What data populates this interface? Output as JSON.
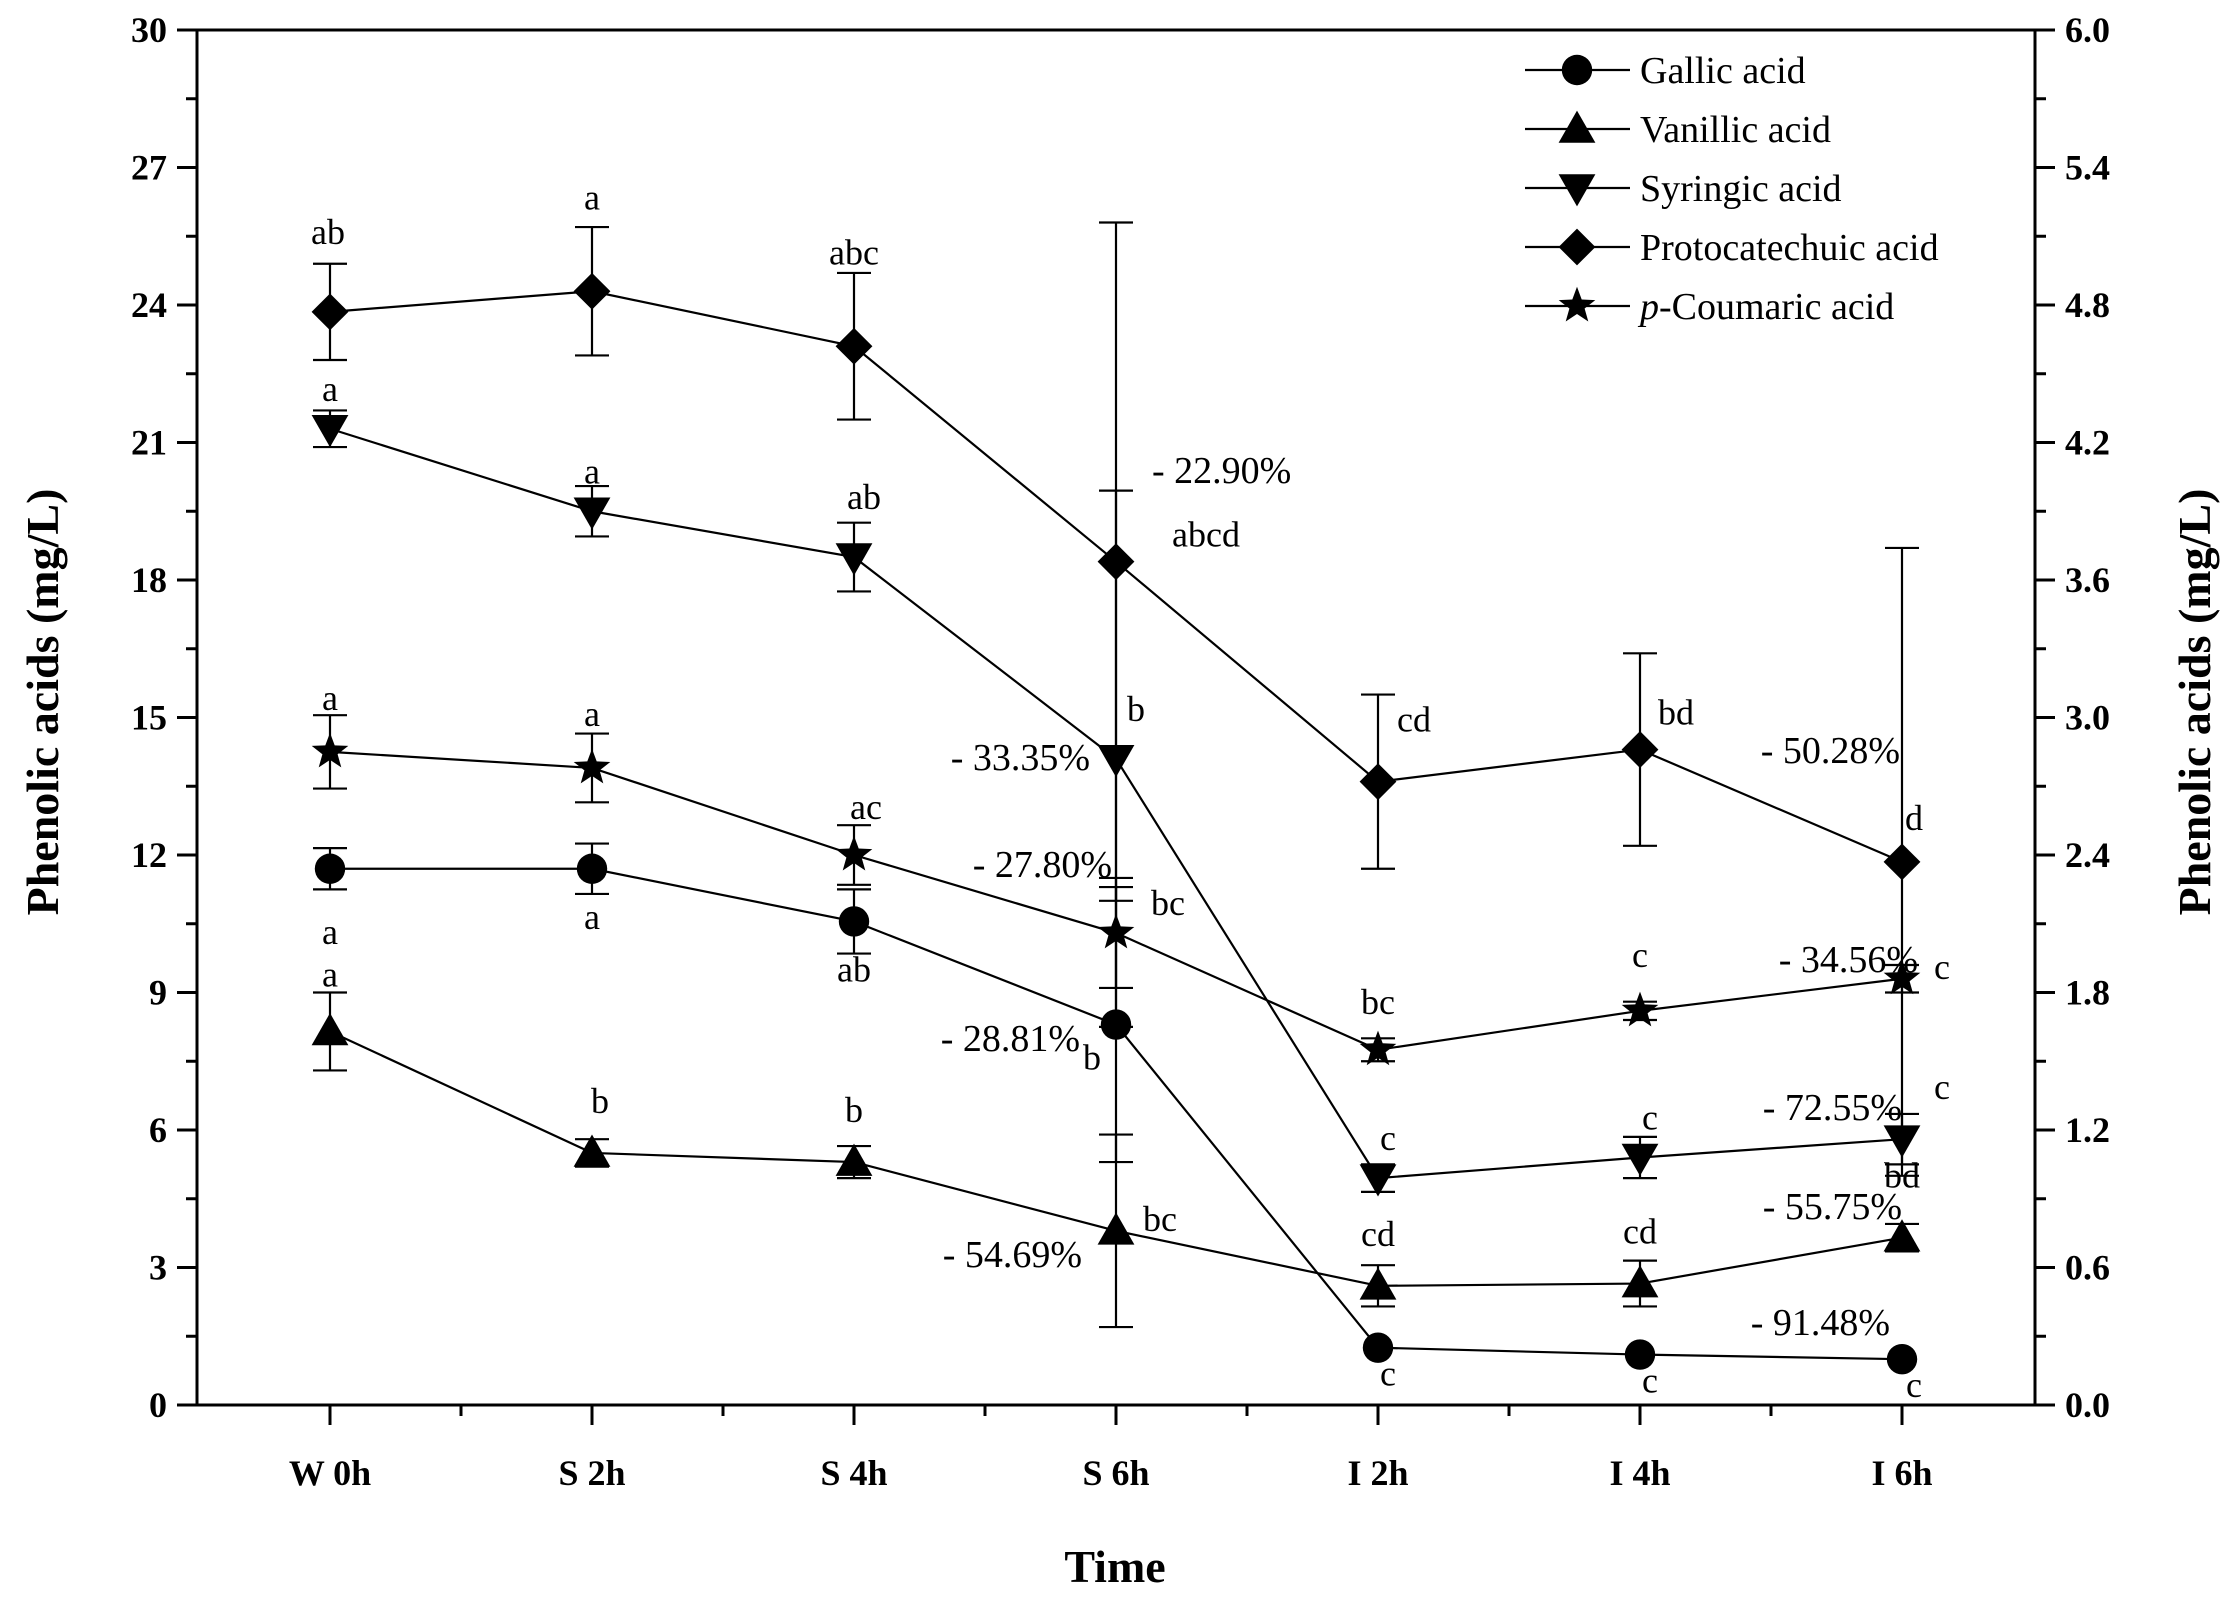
{
  "chart_data": {
    "type": "line",
    "xlabel": "Time",
    "ylabel_left": "Phenolic acids (mg/L)",
    "ylabel_right": "Phenolic acids (mg/L)",
    "categories": [
      "W 0h",
      "S 2h",
      "S 4h",
      "S 6h",
      "I 2h",
      "I 4h",
      "I 6h"
    ],
    "ylim_left": [
      0,
      30
    ],
    "yticks_left": [
      "0",
      "3",
      "6",
      "9",
      "12",
      "15",
      "18",
      "21",
      "24",
      "27",
      "30"
    ],
    "ylim_right": [
      0,
      6
    ],
    "yticks_right": [
      "0.0",
      "0.6",
      "1.2",
      "1.8",
      "2.4",
      "3.0",
      "3.6",
      "4.2",
      "4.8",
      "5.4",
      "6.0"
    ],
    "series": [
      {
        "name": "Gallic acid",
        "marker": "circle",
        "values": [
          11.7,
          11.7,
          10.55,
          8.3,
          1.25,
          1.1,
          1.0
        ],
        "errors": [
          0.45,
          0.55,
          0.7,
          3.0,
          0.0,
          0.0,
          0.0
        ],
        "letters": [
          "a",
          "a",
          "ab",
          "b",
          "c",
          "c",
          "c"
        ]
      },
      {
        "name": "Vanillic acid",
        "marker": "triangle-up",
        "values": [
          8.15,
          5.5,
          5.3,
          3.8,
          2.6,
          2.65,
          3.65
        ],
        "errors": [
          0.85,
          0.3,
          0.35,
          2.1,
          0.45,
          0.5,
          0.3
        ],
        "letters": [
          "a",
          "b",
          "b",
          "bc",
          "cd",
          "cd",
          "bd"
        ]
      },
      {
        "name": "Syringic acid",
        "marker": "triangle-down",
        "values": [
          21.3,
          19.5,
          18.5,
          14.1,
          4.95,
          5.4,
          5.8
        ],
        "errors": [
          0.4,
          0.55,
          0.75,
          5.85,
          0.3,
          0.45,
          0.55
        ],
        "letters": [
          "a",
          "a",
          "ab",
          "b",
          "c",
          "c",
          "c"
        ]
      },
      {
        "name": "Protocatechuic acid",
        "marker": "diamond",
        "values": [
          23.85,
          24.3,
          23.1,
          18.4,
          13.6,
          14.3,
          11.85
        ],
        "errors": [
          1.05,
          1.4,
          1.6,
          7.4,
          1.9,
          2.1,
          6.85
        ],
        "letters": [
          "ab",
          "a",
          "abc",
          "abcd",
          "cd",
          "bd",
          "d"
        ]
      },
      {
        "name": "p-Coumaric acid",
        "legend_prefix": "p",
        "legend_rest": "-Coumaric acid",
        "marker": "star",
        "values": [
          14.25,
          13.9,
          12.0,
          10.3,
          7.75,
          8.6,
          9.3
        ],
        "errors": [
          0.8,
          0.75,
          0.65,
          1.2,
          0.25,
          0.2,
          0.3
        ],
        "letters": [
          "a",
          "a",
          "ac",
          "bc",
          "bc",
          "c",
          "c"
        ]
      }
    ],
    "annotations": [
      "- 22.90%",
      "- 33.35%",
      "- 27.80%",
      "- 28.81%",
      "- 54.69%",
      "- 50.28%",
      "- 34.56%",
      "- 72.55%",
      "- 55.75%",
      "- 91.48%"
    ]
  }
}
